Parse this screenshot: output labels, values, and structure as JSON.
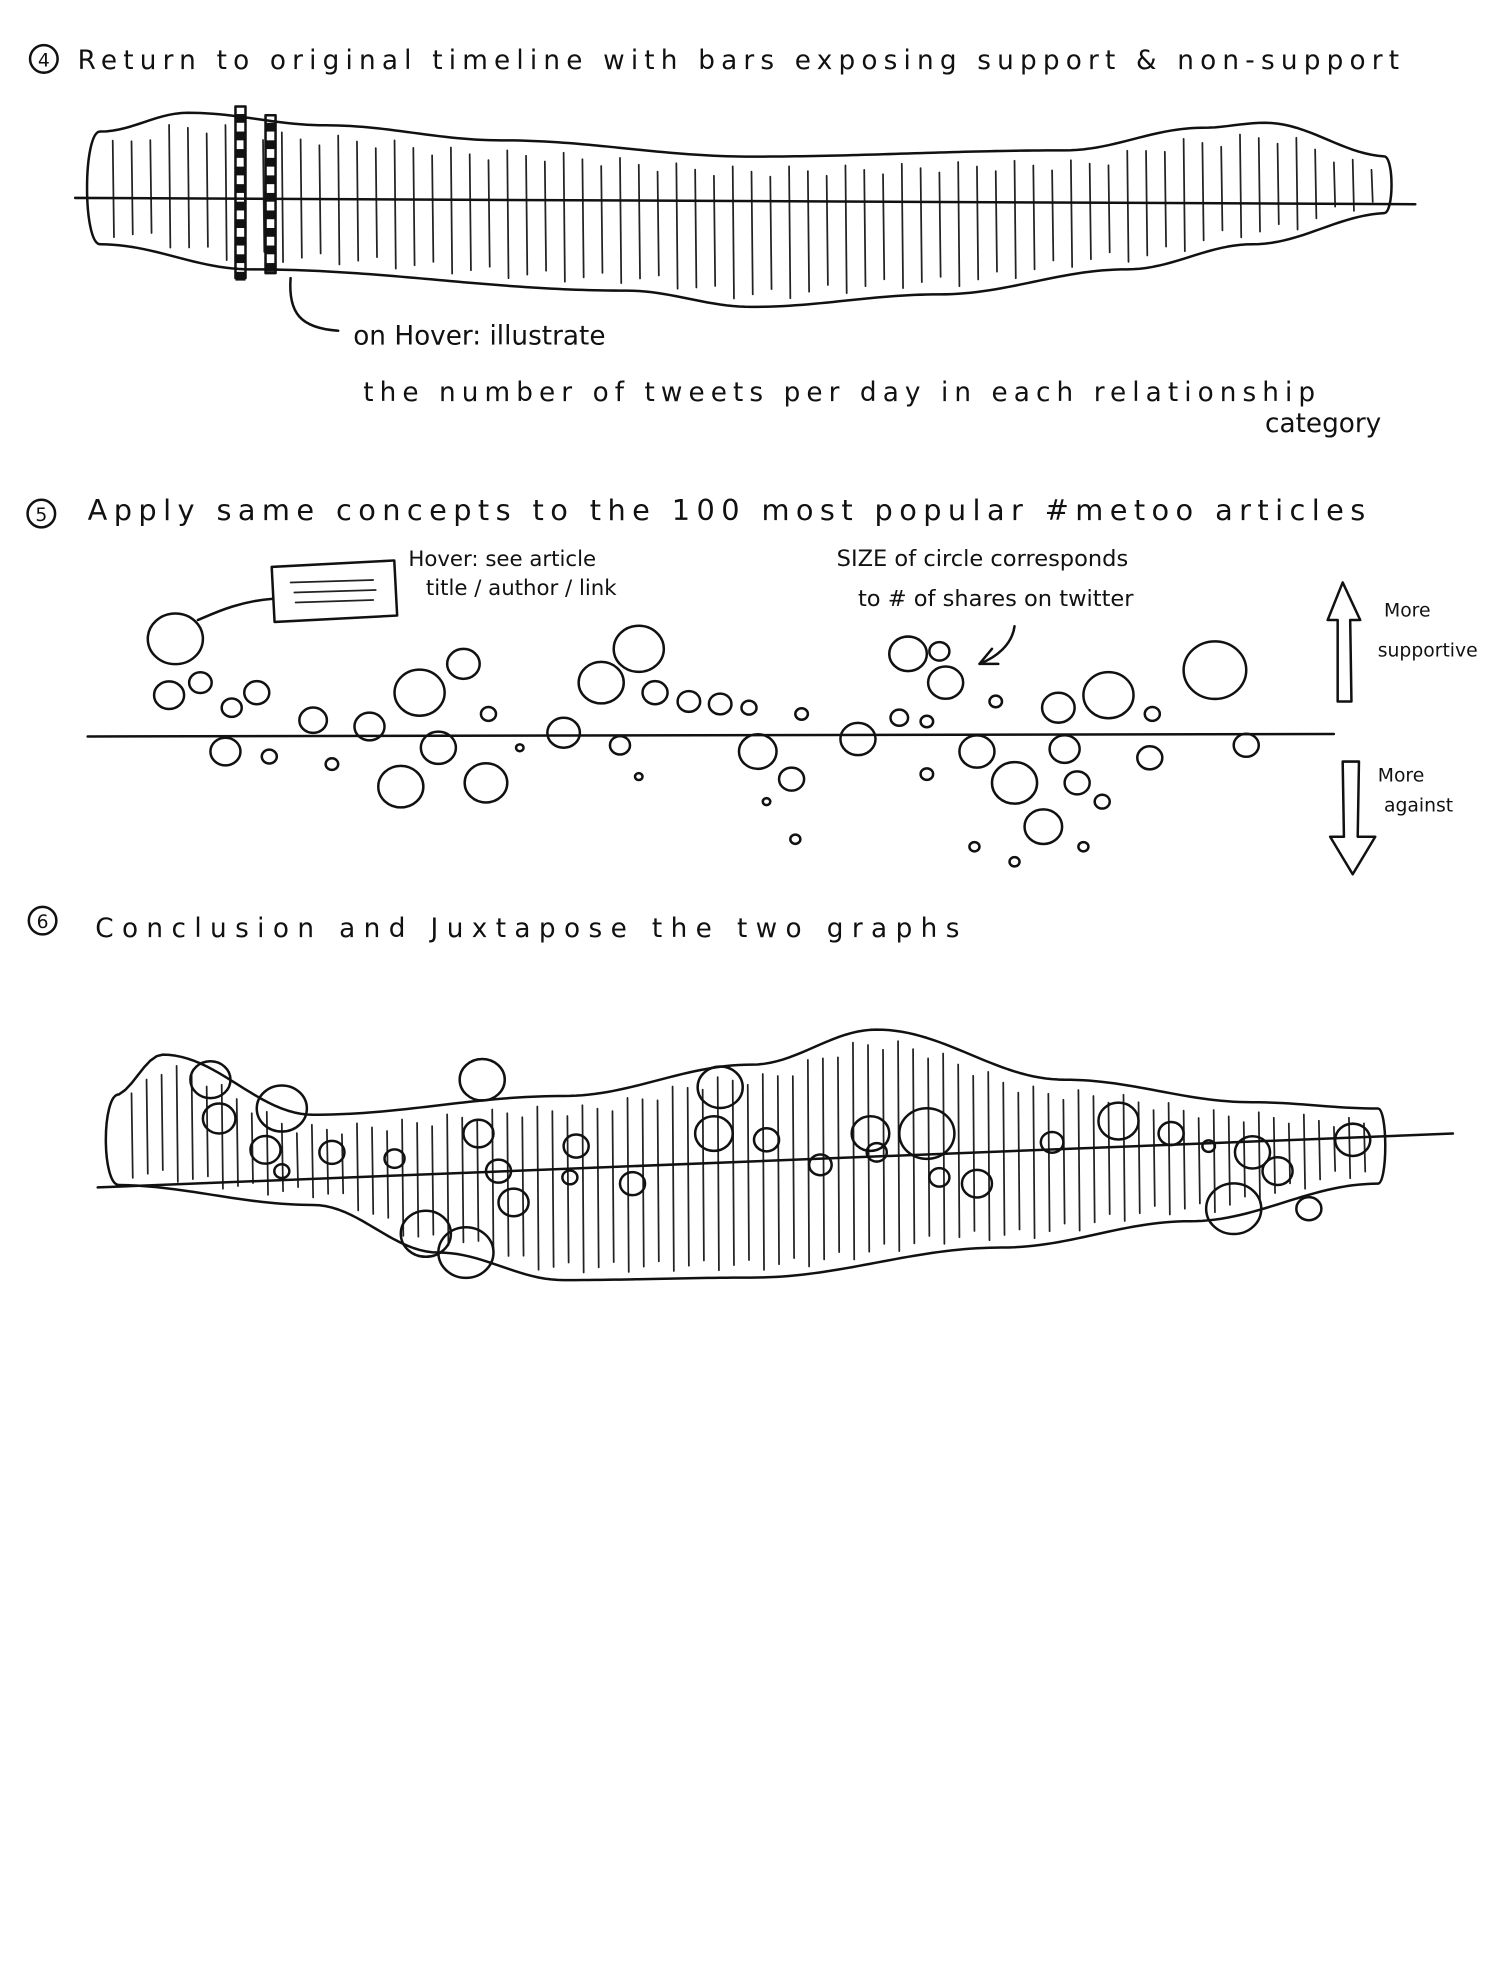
{
  "sections": [
    {
      "number": "4",
      "title": "Return to original timeline with bars exposing support & non-support",
      "annotation": [
        "on Hover: illustrate",
        "the number of tweets per day in each relationship",
        "category"
      ]
    },
    {
      "number": "5",
      "title": "Apply same concepts to the 100 most popular #metoo articles",
      "hover_note": [
        "Hover: see article",
        "title / author / link"
      ],
      "size_note": [
        "SIZE of circle corresponds",
        "to # of shares on twitter"
      ],
      "up_label": [
        "More",
        "supportive"
      ],
      "down_label": [
        "More",
        "against"
      ]
    },
    {
      "number": "6",
      "title": "Conclusion and Juxtapose the two graphs"
    }
  ]
}
